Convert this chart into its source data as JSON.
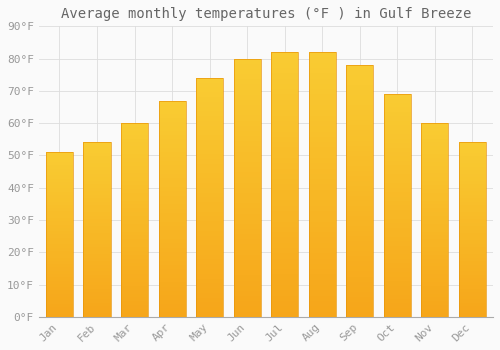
{
  "title": "Average monthly temperatures (°F ) in Gulf Breeze",
  "months": [
    "Jan",
    "Feb",
    "Mar",
    "Apr",
    "May",
    "Jun",
    "Jul",
    "Aug",
    "Sep",
    "Oct",
    "Nov",
    "Dec"
  ],
  "values": [
    51,
    54,
    60,
    67,
    74,
    80,
    82,
    82,
    78,
    69,
    60,
    54
  ],
  "bar_color_top": "#FFC125",
  "bar_color_bottom": "#F5A623",
  "bar_edge_color": "#E8950A",
  "ylim": [
    0,
    90
  ],
  "background_color": "#FAFAFA",
  "grid_color": "#DDDDDD",
  "title_fontsize": 10,
  "tick_fontsize": 8,
  "tick_color": "#999999",
  "title_color": "#666666"
}
